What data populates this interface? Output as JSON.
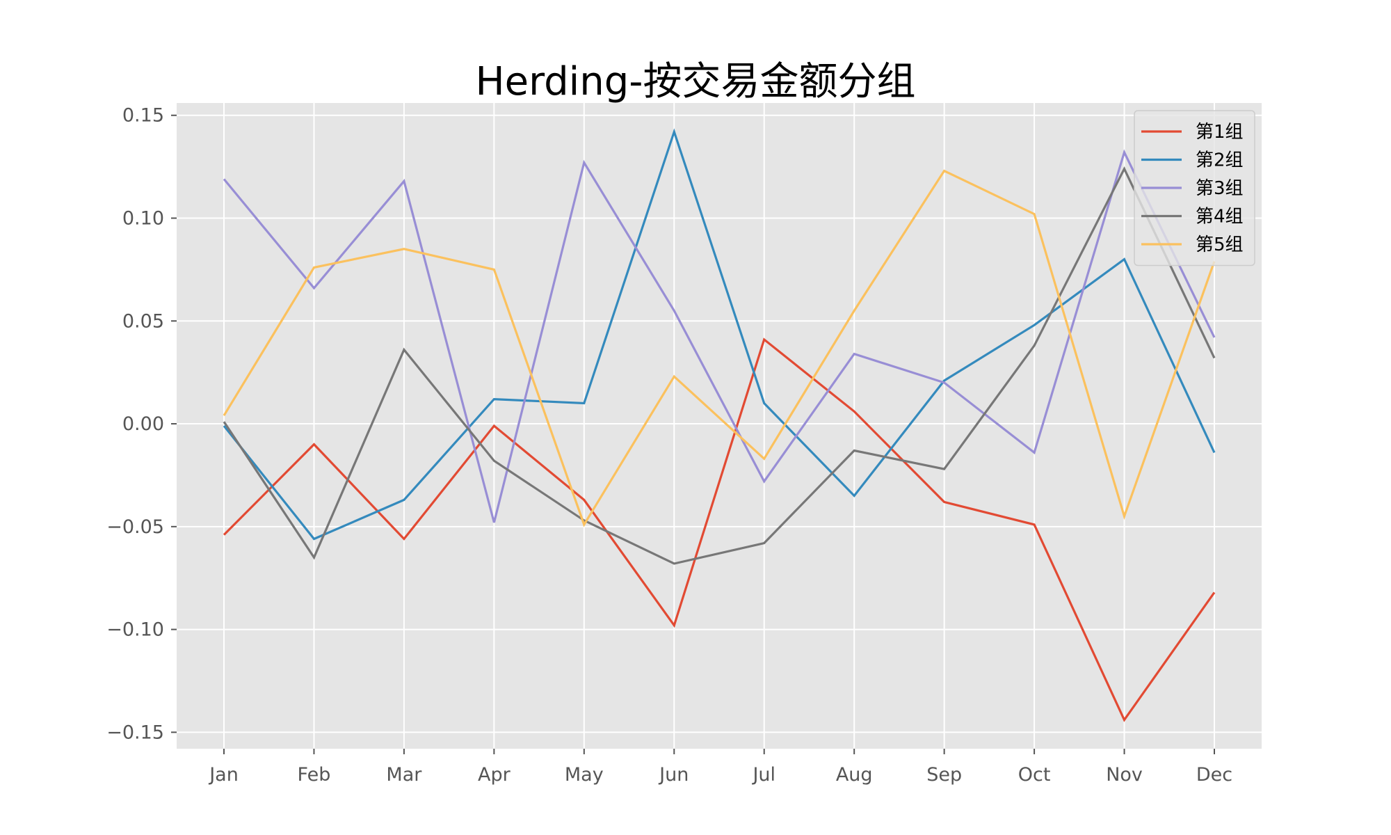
{
  "chart_data": {
    "type": "line",
    "title": "Herding-按交易金额分组",
    "xlabel": "",
    "ylabel": "",
    "categories": [
      "Jan",
      "Feb",
      "Mar",
      "Apr",
      "May",
      "Jun",
      "Jul",
      "Aug",
      "Sep",
      "Oct",
      "Nov",
      "Dec"
    ],
    "ylim": [
      -0.158,
      0.156
    ],
    "yticks": [
      0.15,
      0.1,
      0.05,
      0.0,
      -0.05,
      -0.1,
      -0.15
    ],
    "ytick_labels": [
      "0.15",
      "0.10",
      "0.05",
      "0.00",
      "−0.05",
      "−0.10",
      "−0.15"
    ],
    "grid": true,
    "legend_position": "top-right",
    "series": [
      {
        "name": "第1组",
        "color": "#E24A33",
        "values": [
          -0.054,
          -0.01,
          -0.056,
          -0.001,
          -0.037,
          -0.098,
          0.041,
          0.006,
          -0.038,
          -0.049,
          -0.144,
          -0.082
        ]
      },
      {
        "name": "第2组",
        "color": "#348ABD",
        "values": [
          -0.001,
          -0.056,
          -0.037,
          0.012,
          0.01,
          0.142,
          0.01,
          -0.035,
          0.021,
          0.048,
          0.08,
          -0.014
        ]
      },
      {
        "name": "第3组",
        "color": "#988ED5",
        "values": [
          0.119,
          0.066,
          0.118,
          -0.048,
          0.127,
          0.055,
          -0.028,
          0.034,
          0.02,
          -0.014,
          0.132,
          0.042
        ]
      },
      {
        "name": "第4组",
        "color": "#777777",
        "values": [
          0.001,
          -0.065,
          0.036,
          -0.018,
          -0.047,
          -0.068,
          -0.058,
          -0.013,
          -0.022,
          0.038,
          0.124,
          0.032
        ]
      },
      {
        "name": "第5组",
        "color": "#FBC15E",
        "values": [
          0.004,
          0.076,
          0.085,
          0.075,
          -0.049,
          0.023,
          -0.017,
          0.055,
          0.123,
          0.102,
          -0.045,
          0.079
        ]
      }
    ]
  }
}
